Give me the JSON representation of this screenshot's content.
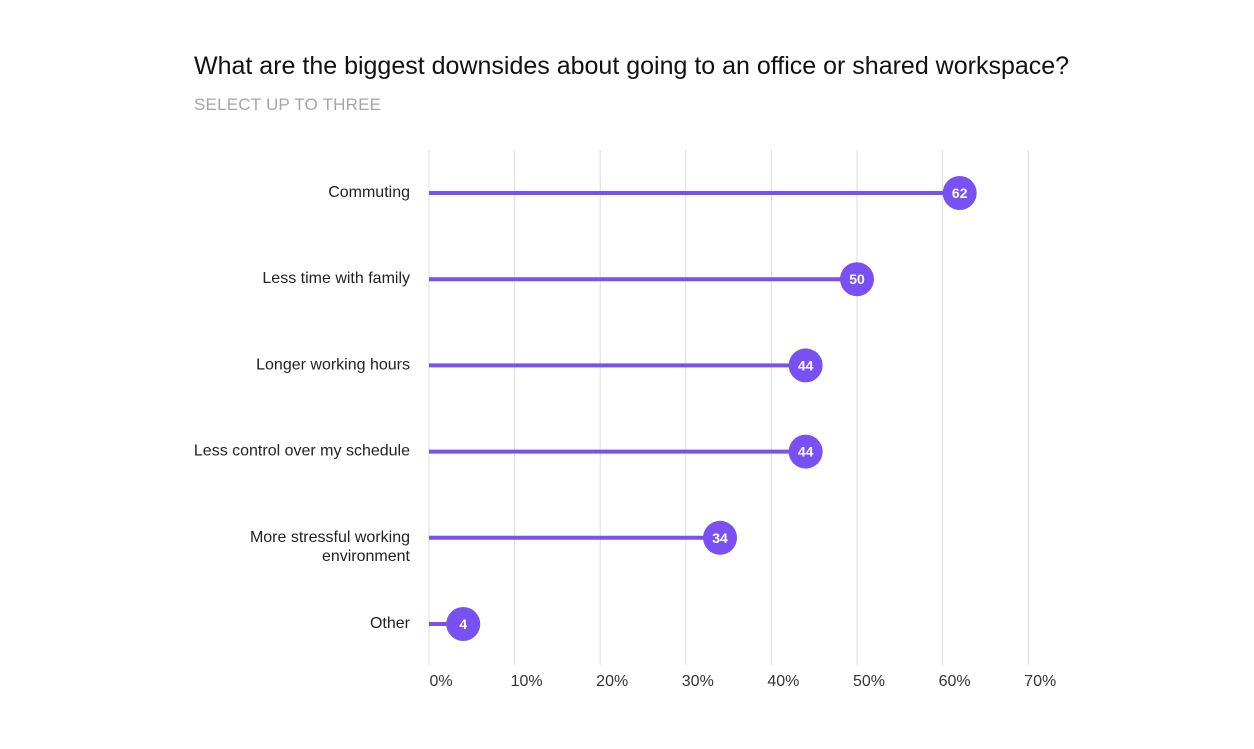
{
  "chart_data": {
    "type": "lollipop",
    "title": "What are the biggest downsides about going to an office or shared workspace?",
    "subtitle": "SELECT UP TO THREE",
    "categories": [
      [
        "Commuting"
      ],
      [
        "Less time with family"
      ],
      [
        "Longer working hours"
      ],
      [
        "Less control over my schedule"
      ],
      [
        "More stressful working",
        "environment"
      ],
      [
        "Other"
      ]
    ],
    "values": [
      62,
      50,
      44,
      44,
      34,
      4
    ],
    "x_ticks": [
      "0%",
      "10%",
      "20%",
      "30%",
      "40%",
      "50%",
      "60%",
      "70%"
    ],
    "xlim": [
      0,
      70
    ],
    "grid": true,
    "colors": {
      "series": "#7950f2",
      "grid": "#dddddd",
      "label_text": "#222222",
      "tick_text": "#333333",
      "value_text": "#ffffff"
    }
  }
}
